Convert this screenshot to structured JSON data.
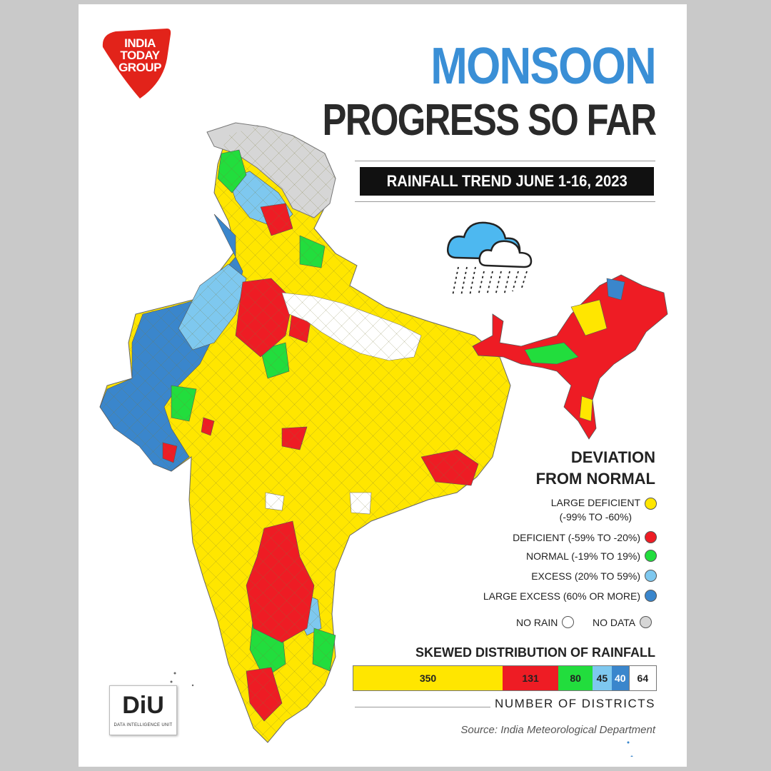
{
  "brand": {
    "logo_lines": [
      "INDIA",
      "TODAY",
      "GROUP"
    ],
    "logo_color": "#e2231a"
  },
  "title": {
    "line1": "MONSOON",
    "line2": "PROGRESS SO FAR",
    "line1_color": "#3a8fd6"
  },
  "subtitle": "RAINFALL TREND JUNE 1-16, 2023",
  "legend": {
    "title_line1": "DEVIATION",
    "title_line2": "FROM NORMAL",
    "items": [
      {
        "label": "LARGE DEFICIENT",
        "range": "(-99% TO -60%)",
        "color": "#ffe600"
      },
      {
        "label": "DEFICIENT (-59% TO -20%)",
        "color": "#ee1c24"
      },
      {
        "label": "NORMAL (-19% TO 19%)",
        "color": "#22dd3d"
      },
      {
        "label": "EXCESS (20% TO 59%)",
        "color": "#7ec8ef"
      },
      {
        "label": "LARGE EXCESS (60% OR MORE)",
        "color": "#3a86cc"
      }
    ],
    "no_rain": {
      "label": "NO RAIN",
      "color": "#ffffff"
    },
    "no_data": {
      "label": "NO DATA",
      "color": "#d6d6d6"
    }
  },
  "distribution": {
    "title": "SKEWED DISTRIBUTION OF RAINFALL",
    "units": "NUMBER OF DISTRICTS",
    "segments": [
      {
        "value": 350,
        "color": "#ffe600"
      },
      {
        "value": 131,
        "color": "#ee1c24"
      },
      {
        "value": 80,
        "color": "#22dd3d"
      },
      {
        "value": 45,
        "color": "#7ec8ef"
      },
      {
        "value": 40,
        "color": "#3a86cc"
      },
      {
        "value": 64,
        "color": "#ffffff"
      }
    ]
  },
  "source": "Source: India Meteorological Department",
  "footer_logo": {
    "text": "DiU",
    "subtext": "DATA INTELLIGENCE UNIT"
  }
}
